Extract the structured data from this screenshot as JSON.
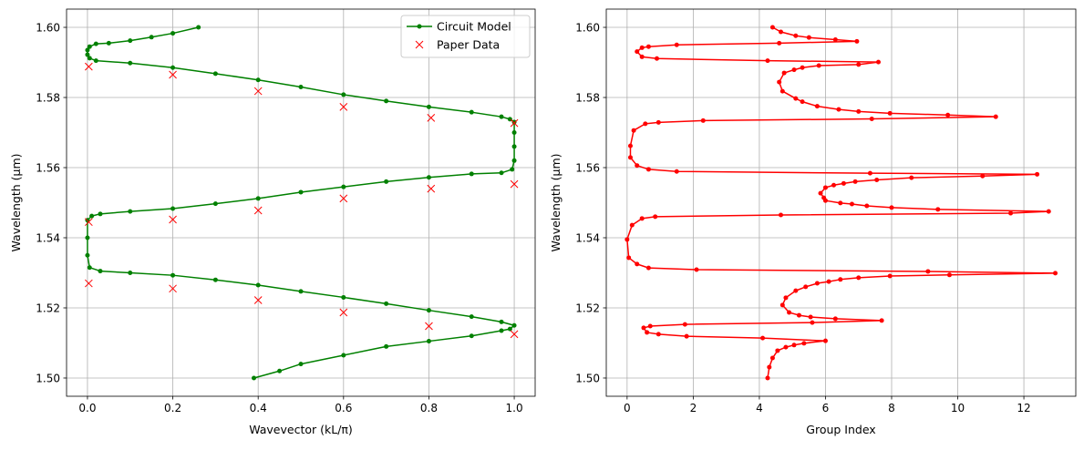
{
  "chart_data": [
    {
      "type": "line",
      "xlabel": "Wavevector (kL/π)",
      "ylabel": "Wavelength (μm)",
      "xlim": [
        -0.049,
        1.049
      ],
      "ylim": [
        1.4948,
        1.6052
      ],
      "xticks": [
        "0.0",
        "0.2",
        "0.4",
        "0.6",
        "0.8",
        "1.0"
      ],
      "xtick_values": [
        0,
        0.2,
        0.4,
        0.6,
        0.8,
        1.0
      ],
      "yticks": [
        "1.50",
        "1.52",
        "1.54",
        "1.56",
        "1.58",
        "1.60"
      ],
      "ytick_values": [
        1.5,
        1.52,
        1.54,
        1.56,
        1.58,
        1.6
      ],
      "grid": true,
      "legend_position": "top-right",
      "series": [
        {
          "name": "Circuit Model",
          "color": "#008000",
          "marker": "dot",
          "points": [
            [
              0.26,
              1.6
            ],
            [
              0.2,
              1.5983
            ],
            [
              0.15,
              1.5972
            ],
            [
              0.1,
              1.5962
            ],
            [
              0.05,
              1.5955
            ],
            [
              0.02,
              1.5953
            ],
            [
              0.005,
              1.5945
            ],
            [
              0.0,
              1.5935
            ],
            [
              0.0,
              1.5922
            ],
            [
              0.005,
              1.5912
            ],
            [
              0.02,
              1.5905
            ],
            [
              0.1,
              1.5898
            ],
            [
              0.2,
              1.5885
            ],
            [
              0.3,
              1.5868
            ],
            [
              0.4,
              1.585
            ],
            [
              0.5,
              1.583
            ],
            [
              0.6,
              1.5808
            ],
            [
              0.7,
              1.579
            ],
            [
              0.8,
              1.5773
            ],
            [
              0.9,
              1.5758
            ],
            [
              0.97,
              1.5745
            ],
            [
              0.99,
              1.5738
            ],
            [
              1.0,
              1.573
            ],
            [
              1.0,
              1.57
            ],
            [
              1.0,
              1.566
            ],
            [
              1.0,
              1.562
            ],
            [
              0.995,
              1.5595
            ],
            [
              0.97,
              1.5585
            ],
            [
              0.9,
              1.5582
            ],
            [
              0.8,
              1.5572
            ],
            [
              0.7,
              1.556
            ],
            [
              0.6,
              1.5545
            ],
            [
              0.5,
              1.553
            ],
            [
              0.4,
              1.5512
            ],
            [
              0.3,
              1.5497
            ],
            [
              0.2,
              1.5483
            ],
            [
              0.1,
              1.5475
            ],
            [
              0.03,
              1.5468
            ],
            [
              0.01,
              1.5462
            ],
            [
              0.0,
              1.545
            ],
            [
              0.0,
              1.54
            ],
            [
              0.0,
              1.535
            ],
            [
              0.005,
              1.5315
            ],
            [
              0.03,
              1.5305
            ],
            [
              0.1,
              1.53
            ],
            [
              0.2,
              1.5293
            ],
            [
              0.3,
              1.528
            ],
            [
              0.4,
              1.5265
            ],
            [
              0.5,
              1.5247
            ],
            [
              0.6,
              1.523
            ],
            [
              0.7,
              1.5212
            ],
            [
              0.8,
              1.5193
            ],
            [
              0.9,
              1.5175
            ],
            [
              0.97,
              1.516
            ],
            [
              1.0,
              1.515
            ],
            [
              0.99,
              1.514
            ],
            [
              0.97,
              1.5135
            ],
            [
              0.9,
              1.512
            ],
            [
              0.8,
              1.5105
            ],
            [
              0.7,
              1.509
            ],
            [
              0.6,
              1.5065
            ],
            [
              0.5,
              1.504
            ],
            [
              0.45,
              1.502
            ],
            [
              0.39,
              1.5
            ]
          ]
        },
        {
          "name": "Paper Data",
          "color": "#ff0000",
          "marker": "x",
          "points": [
            [
              0.003,
              1.5888
            ],
            [
              0.2,
              1.5865
            ],
            [
              0.4,
              1.5818
            ],
            [
              0.6,
              1.5773
            ],
            [
              0.805,
              1.5742
            ],
            [
              1.0,
              1.5727
            ],
            [
              1.0,
              1.5553
            ],
            [
              0.805,
              1.554
            ],
            [
              0.6,
              1.5512
            ],
            [
              0.4,
              1.5478
            ],
            [
              0.2,
              1.5452
            ],
            [
              0.003,
              1.5445
            ],
            [
              0.003,
              1.527
            ],
            [
              0.2,
              1.5255
            ],
            [
              0.4,
              1.5222
            ],
            [
              0.6,
              1.5187
            ],
            [
              0.8,
              1.5148
            ],
            [
              1.0,
              1.5125
            ]
          ]
        }
      ]
    },
    {
      "type": "line",
      "xlabel": "Group Index",
      "ylabel": "Wavelength (μm)",
      "xlim": [
        -0.63,
        13.57
      ],
      "ylim": [
        1.4948,
        1.6052
      ],
      "xticks": [
        "0",
        "2",
        "4",
        "6",
        "8",
        "10",
        "12"
      ],
      "xtick_values": [
        0,
        2,
        4,
        6,
        8,
        10,
        12
      ],
      "yticks": [
        "1.50",
        "1.52",
        "1.54",
        "1.56",
        "1.58",
        "1.60"
      ],
      "ytick_values": [
        1.5,
        1.52,
        1.54,
        1.56,
        1.58,
        1.6
      ],
      "grid": true,
      "series": [
        {
          "color": "#ff0000",
          "marker": "dot",
          "points": [
            [
              4.4,
              1.6
            ],
            [
              4.65,
              1.5987
            ],
            [
              5.1,
              1.5976
            ],
            [
              5.5,
              1.5971
            ],
            [
              6.3,
              1.5965
            ],
            [
              6.95,
              1.596
            ],
            [
              4.6,
              1.5955
            ],
            [
              1.5,
              1.595
            ],
            [
              0.65,
              1.5945
            ],
            [
              0.45,
              1.5942
            ],
            [
              0.3,
              1.5931
            ],
            [
              0.45,
              1.5916
            ],
            [
              0.9,
              1.5911
            ],
            [
              4.25,
              1.5905
            ],
            [
              7.6,
              1.5901
            ],
            [
              7.0,
              1.5894
            ],
            [
              5.8,
              1.5891
            ],
            [
              5.3,
              1.5885
            ],
            [
              5.05,
              1.5879
            ],
            [
              4.75,
              1.587
            ],
            [
              4.6,
              1.5844
            ],
            [
              4.7,
              1.5818
            ],
            [
              5.1,
              1.5797
            ],
            [
              5.3,
              1.5788
            ],
            [
              5.75,
              1.5775
            ],
            [
              6.4,
              1.5766
            ],
            [
              7.0,
              1.576
            ],
            [
              7.95,
              1.5755
            ],
            [
              9.7,
              1.575
            ],
            [
              11.15,
              1.5745
            ],
            [
              7.4,
              1.5739
            ],
            [
              2.3,
              1.5734
            ],
            [
              0.95,
              1.5729
            ],
            [
              0.55,
              1.5725
            ],
            [
              0.2,
              1.5706
            ],
            [
              0.1,
              1.5662
            ],
            [
              0.1,
              1.5629
            ],
            [
              0.3,
              1.5606
            ],
            [
              0.65,
              1.5595
            ],
            [
              1.5,
              1.5589
            ],
            [
              7.35,
              1.5584
            ],
            [
              12.4,
              1.5581
            ],
            [
              10.75,
              1.5576
            ],
            [
              8.6,
              1.5571
            ],
            [
              7.55,
              1.5565
            ],
            [
              6.9,
              1.556
            ],
            [
              6.55,
              1.5555
            ],
            [
              6.25,
              1.555
            ],
            [
              6.0,
              1.5543
            ],
            [
              5.85,
              1.5527
            ],
            [
              5.95,
              1.5514
            ],
            [
              6.0,
              1.5506
            ],
            [
              6.45,
              1.5499
            ],
            [
              6.8,
              1.5496
            ],
            [
              7.25,
              1.5491
            ],
            [
              8.0,
              1.5486
            ],
            [
              9.4,
              1.5481
            ],
            [
              12.75,
              1.5475
            ],
            [
              11.6,
              1.547
            ],
            [
              4.65,
              1.5465
            ],
            [
              0.85,
              1.546
            ],
            [
              0.45,
              1.5455
            ],
            [
              0.15,
              1.5436
            ],
            [
              0.0,
              1.5395
            ],
            [
              0.05,
              1.5343
            ],
            [
              0.3,
              1.5325
            ],
            [
              0.65,
              1.5314
            ],
            [
              2.1,
              1.5309
            ],
            [
              9.1,
              1.5304
            ],
            [
              12.95,
              1.5299
            ],
            [
              9.75,
              1.5294
            ],
            [
              7.95,
              1.5291
            ],
            [
              7.0,
              1.5286
            ],
            [
              6.45,
              1.5281
            ],
            [
              6.1,
              1.5275
            ],
            [
              5.75,
              1.527
            ],
            [
              5.4,
              1.526
            ],
            [
              5.1,
              1.5249
            ],
            [
              4.8,
              1.5229
            ],
            [
              4.7,
              1.5208
            ],
            [
              4.9,
              1.5187
            ],
            [
              5.2,
              1.5179
            ],
            [
              5.55,
              1.5174
            ],
            [
              6.3,
              1.5169
            ],
            [
              7.7,
              1.5164
            ],
            [
              5.6,
              1.5158
            ],
            [
              1.75,
              1.5153
            ],
            [
              0.7,
              1.5148
            ],
            [
              0.5,
              1.5143
            ],
            [
              0.6,
              1.513
            ],
            [
              0.95,
              1.5125
            ],
            [
              1.8,
              1.5119
            ],
            [
              4.1,
              1.5114
            ],
            [
              6.0,
              1.5106
            ],
            [
              5.35,
              1.5099
            ],
            [
              5.05,
              1.5094
            ],
            [
              4.8,
              1.5088
            ],
            [
              4.55,
              1.5078
            ],
            [
              4.4,
              1.5057
            ],
            [
              4.3,
              1.5031
            ],
            [
              4.25,
              1.5
            ]
          ]
        }
      ]
    }
  ]
}
